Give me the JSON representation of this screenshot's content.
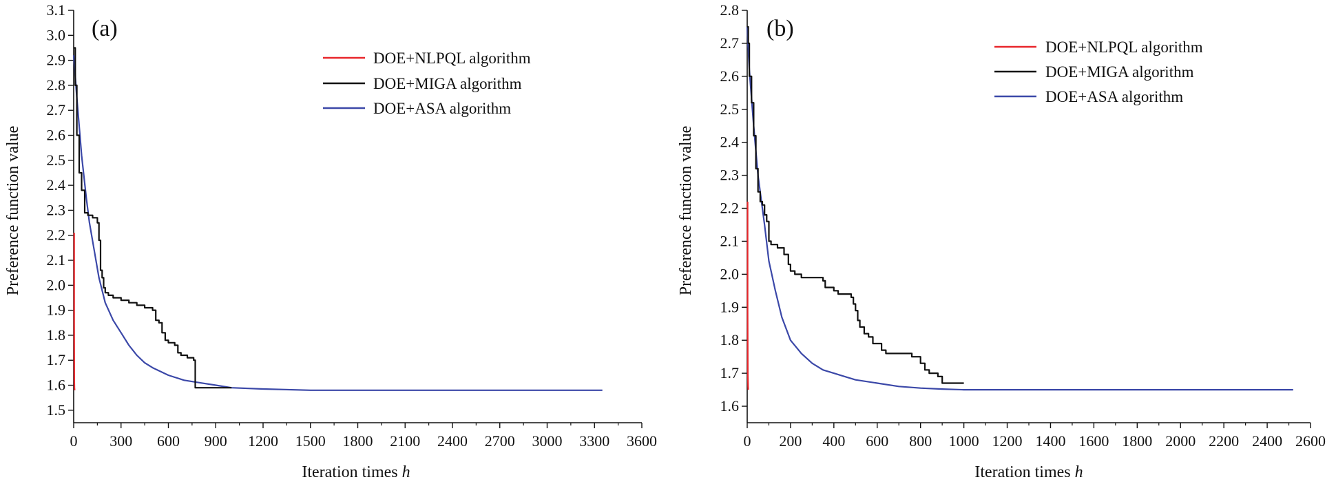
{
  "chart_data": [
    {
      "type": "line",
      "panel_label": "(a)",
      "xlabel": "Iteration times",
      "xlabel_italic": "h",
      "ylabel": "Preference function value",
      "xlim": [
        0,
        3600
      ],
      "ylim": [
        1.45,
        3.1
      ],
      "x_ticks": [
        0,
        300,
        600,
        900,
        1200,
        1500,
        1800,
        2100,
        2400,
        2700,
        3000,
        3300,
        3600
      ],
      "y_ticks": [
        1.5,
        1.6,
        1.7,
        1.8,
        1.9,
        2.0,
        2.1,
        2.2,
        2.3,
        2.4,
        2.5,
        2.6,
        2.7,
        2.8,
        2.9,
        3.0,
        3.1
      ],
      "x_tick_labels": [
        "0",
        "300",
        "600",
        "900",
        "1200",
        "1500",
        "1800",
        "2100",
        "2400",
        "2700",
        "3000",
        "3300",
        "3600"
      ],
      "y_tick_labels": [
        "1.5",
        "1.6",
        "1.7",
        "1.8",
        "1.9",
        "2.0",
        "2.1",
        "2.2",
        "2.3",
        "2.4",
        "2.5",
        "2.6",
        "2.7",
        "2.8",
        "2.9",
        "3.0",
        "3.1"
      ],
      "legend_position": "top-right",
      "series": [
        {
          "name": "DOE+NLPQL algorithm",
          "color": "#e8262b",
          "step": false,
          "x": [
            3,
            3,
            4,
            5,
            6
          ],
          "y": [
            2.21,
            1.85,
            1.62,
            1.59,
            1.58
          ]
        },
        {
          "name": "DOE+MIGA algorithm",
          "color": "#111111",
          "step": true,
          "x": [
            0,
            10,
            20,
            35,
            50,
            70,
            90,
            120,
            150,
            160,
            170,
            180,
            190,
            200,
            220,
            250,
            300,
            350,
            400,
            450,
            500,
            520,
            540,
            560,
            580,
            600,
            640,
            660,
            680,
            720,
            760,
            770,
            800,
            860,
            1000
          ],
          "y": [
            2.95,
            2.8,
            2.6,
            2.45,
            2.38,
            2.29,
            2.28,
            2.27,
            2.25,
            2.18,
            2.06,
            2.03,
            1.99,
            1.97,
            1.96,
            1.95,
            1.94,
            1.93,
            1.92,
            1.91,
            1.9,
            1.86,
            1.85,
            1.81,
            1.78,
            1.77,
            1.76,
            1.73,
            1.72,
            1.71,
            1.7,
            1.59,
            1.59,
            1.59,
            1.59
          ]
        },
        {
          "name": "DOE+ASA algorithm",
          "color": "#3b48a8",
          "step": false,
          "x": [
            0,
            20,
            50,
            80,
            100,
            130,
            160,
            200,
            250,
            300,
            350,
            400,
            450,
            500,
            600,
            700,
            800,
            900,
            1000,
            1200,
            1500,
            2000,
            2500,
            3000,
            3350
          ],
          "y": [
            2.92,
            2.75,
            2.52,
            2.35,
            2.25,
            2.14,
            2.03,
            1.93,
            1.86,
            1.81,
            1.76,
            1.72,
            1.69,
            1.67,
            1.64,
            1.62,
            1.61,
            1.6,
            1.59,
            1.585,
            1.58,
            1.58,
            1.58,
            1.58,
            1.58
          ]
        }
      ]
    },
    {
      "type": "line",
      "panel_label": "(b)",
      "xlabel": "Iteration times",
      "xlabel_italic": "h",
      "ylabel": "Preference function value",
      "xlim": [
        0,
        2600
      ],
      "ylim": [
        1.55,
        2.8
      ],
      "x_ticks": [
        0,
        200,
        400,
        600,
        800,
        1000,
        1200,
        1400,
        1600,
        1800,
        2000,
        2200,
        2400,
        2600
      ],
      "y_ticks": [
        1.6,
        1.7,
        1.8,
        1.9,
        2.0,
        2.1,
        2.2,
        2.3,
        2.4,
        2.5,
        2.6,
        2.7,
        2.8
      ],
      "x_tick_labels": [
        "0",
        "200",
        "400",
        "600",
        "800",
        "1000",
        "1200",
        "1400",
        "1600",
        "1800",
        "2000",
        "2200",
        "2400",
        "2600"
      ],
      "y_tick_labels": [
        "1.6",
        "1.7",
        "1.8",
        "1.9",
        "2.0",
        "2.1",
        "2.2",
        "2.3",
        "2.4",
        "2.5",
        "2.6",
        "2.7",
        "2.8"
      ],
      "legend_position": "top-right",
      "series": [
        {
          "name": "DOE+NLPQL algorithm",
          "color": "#e8262b",
          "step": false,
          "x": [
            2,
            2,
            3,
            4,
            5
          ],
          "y": [
            2.22,
            1.9,
            1.7,
            1.66,
            1.65
          ]
        },
        {
          "name": "DOE+MIGA algorithm",
          "color": "#111111",
          "step": true,
          "x": [
            0,
            5,
            10,
            20,
            30,
            40,
            50,
            60,
            70,
            80,
            90,
            100,
            110,
            140,
            170,
            190,
            200,
            220,
            250,
            280,
            300,
            350,
            360,
            400,
            420,
            450,
            480,
            490,
            500,
            510,
            520,
            540,
            560,
            580,
            620,
            640,
            700,
            760,
            780,
            800,
            820,
            840,
            860,
            880,
            900,
            1000
          ],
          "y": [
            2.75,
            2.7,
            2.6,
            2.52,
            2.42,
            2.32,
            2.25,
            2.22,
            2.21,
            2.18,
            2.16,
            2.1,
            2.09,
            2.08,
            2.06,
            2.03,
            2.01,
            2.0,
            1.99,
            1.99,
            1.99,
            1.98,
            1.96,
            1.95,
            1.94,
            1.94,
            1.93,
            1.91,
            1.89,
            1.86,
            1.84,
            1.82,
            1.81,
            1.79,
            1.77,
            1.76,
            1.76,
            1.75,
            1.75,
            1.73,
            1.71,
            1.7,
            1.7,
            1.69,
            1.67,
            1.67
          ]
        },
        {
          "name": "DOE+ASA algorithm",
          "color": "#3b48a8",
          "step": false,
          "x": [
            0,
            10,
            30,
            50,
            80,
            100,
            130,
            160,
            200,
            250,
            300,
            350,
            400,
            450,
            500,
            600,
            700,
            800,
            900,
            1000,
            1200,
            1500,
            2000,
            2520
          ],
          "y": [
            2.75,
            2.62,
            2.45,
            2.3,
            2.15,
            2.04,
            1.95,
            1.87,
            1.8,
            1.76,
            1.73,
            1.71,
            1.7,
            1.69,
            1.68,
            1.67,
            1.66,
            1.655,
            1.652,
            1.65,
            1.65,
            1.65,
            1.65,
            1.65
          ]
        }
      ]
    }
  ]
}
